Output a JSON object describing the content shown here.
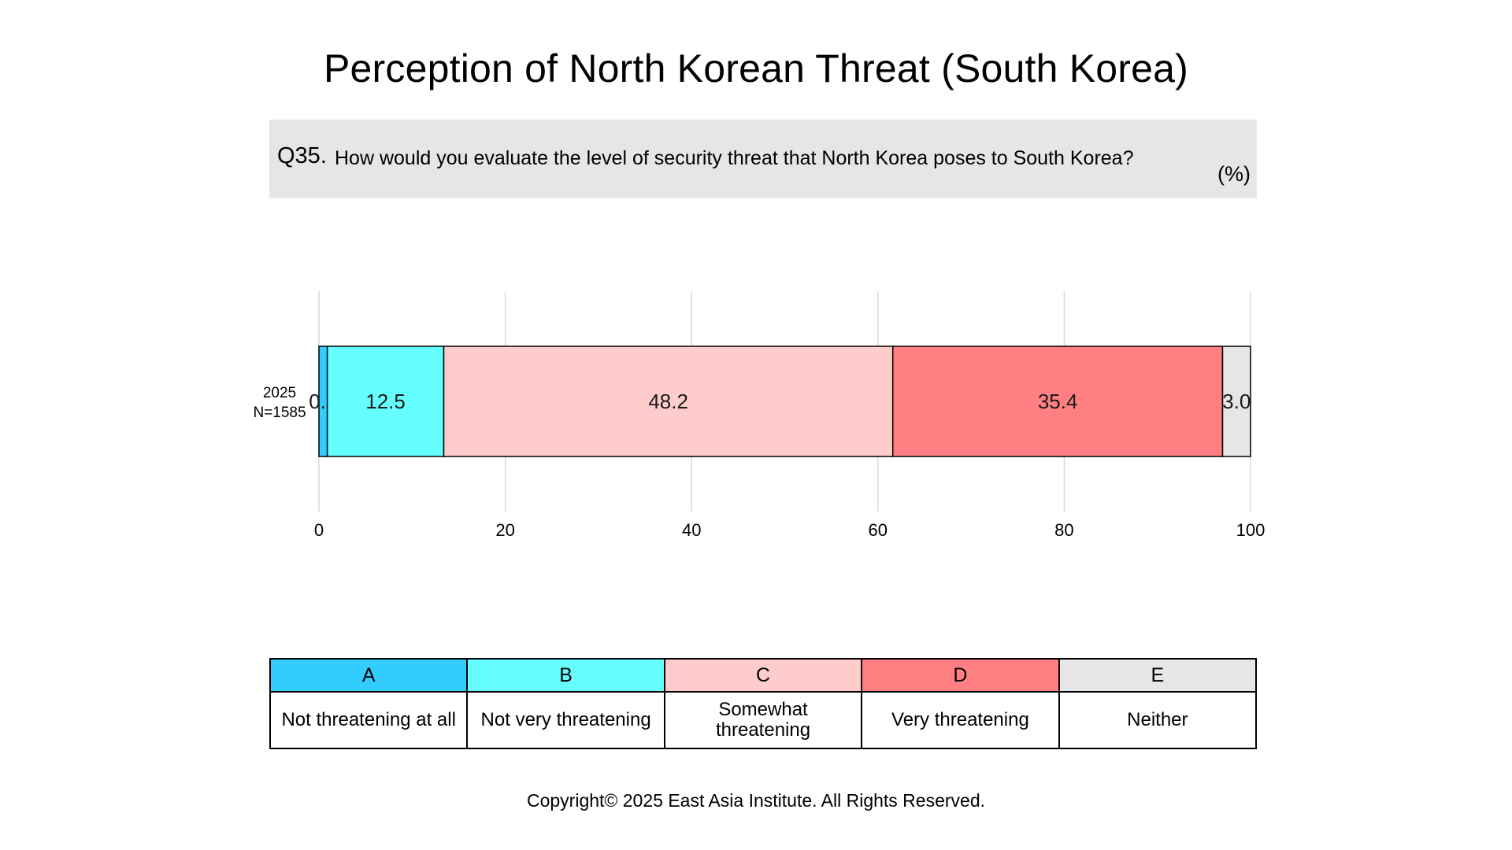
{
  "title": "Perception of North Korean Threat (South Korea)",
  "question": {
    "number": "Q35.",
    "text": "How would you evaluate the level of security threat that North Korea poses to South Korea?",
    "unit": "(%)"
  },
  "chart_data": {
    "type": "bar",
    "orientation": "horizontal",
    "stacked": true,
    "categories": [
      "2025\nN=1585"
    ],
    "row_label": {
      "year": "2025",
      "n": "N=1585"
    },
    "series": [
      {
        "name": "A",
        "values": [
          0.9
        ],
        "color": "#33ccff",
        "label": "0.9"
      },
      {
        "name": "B",
        "values": [
          12.5
        ],
        "color": "#66ffff",
        "label": "12.5"
      },
      {
        "name": "C",
        "values": [
          48.2
        ],
        "color": "#ffcccc",
        "label": "48.2"
      },
      {
        "name": "D",
        "values": [
          35.4
        ],
        "color": "#ff7f82",
        "label": "35.4"
      },
      {
        "name": "E",
        "values": [
          3.0
        ],
        "color": "#e6e6e6",
        "label": "3.0"
      }
    ],
    "xlim": [
      0,
      100
    ],
    "xticks": [
      0,
      20,
      40,
      60,
      80,
      100
    ],
    "grid": true
  },
  "legend": [
    {
      "key": "A",
      "label": "Not threatening at all",
      "color": "#33ccff"
    },
    {
      "key": "B",
      "label": "Not very threatening",
      "color": "#66ffff"
    },
    {
      "key": "C",
      "label": "Somewhat threatening",
      "color": "#ffcccc"
    },
    {
      "key": "D",
      "label": "Very threatening",
      "color": "#ff7f82"
    },
    {
      "key": "E",
      "label": "Neither",
      "color": "#e6e6e6"
    }
  ],
  "copyright": "Copyright© 2025 East Asia Institute. All Rights Reserved."
}
